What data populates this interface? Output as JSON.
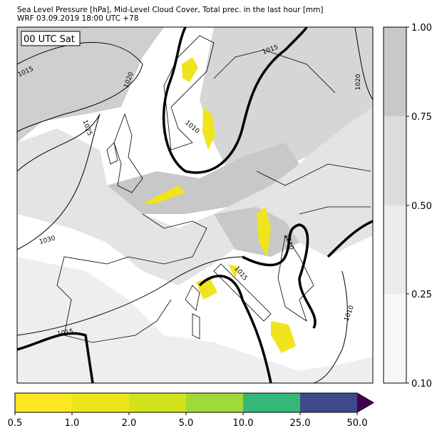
{
  "header": {
    "title": "Sea Level Pressure [hPa], Mid-Level Cloud Cover, Total prec. in the last hour [mm]",
    "subtitle": "WRF 03.09.2019 18:00 UTC +78"
  },
  "map": {
    "time_label": "00 UTC Sat",
    "contour_labels": [
      "1015",
      "1020",
      "1025",
      "1030",
      "1015",
      "1015",
      "1010",
      "1020",
      "1010",
      "1015",
      "1010"
    ]
  },
  "cloud_colorbar": {
    "ticks": [
      "1.00",
      "0.75",
      "0.50",
      "0.25",
      "0.10"
    ]
  },
  "precip_colorbar": {
    "ticks": [
      "0.5",
      "1.0",
      "2.0",
      "5.0",
      "10.0",
      "25.0",
      "50.0"
    ]
  }
}
